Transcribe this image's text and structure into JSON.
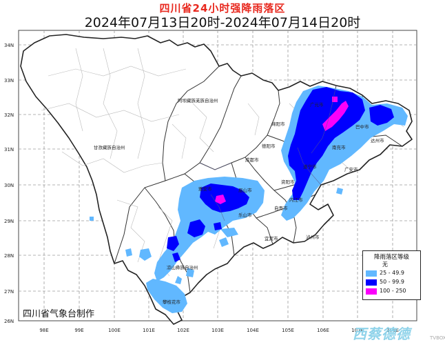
{
  "header": {
    "title": "四川省24小时强降雨落区",
    "period": "2024年07月13日20时-2024年07月14日20时"
  },
  "axes": {
    "lat_labels": [
      "34N",
      "33N",
      "32N",
      "31N",
      "30N",
      "29N",
      "28N",
      "27N",
      "26N"
    ],
    "lon_labels": [
      "98E",
      "99E",
      "100E",
      "101E",
      "102E",
      "103E",
      "104E",
      "105E",
      "106E",
      "107E",
      "108E"
    ]
  },
  "places": {
    "aba": "阿坝藏族羌族自治州",
    "ganzi": "甘孜藏族自治州",
    "chengdu": "成都市",
    "deyang": "德阳市",
    "mianyang": "绵阳市",
    "guangyuan": "广元市",
    "bazhong": "巴中市",
    "dazhou": "达州市",
    "nanchong": "南充市",
    "suining": "遂宁市",
    "guangan": "广安市",
    "ziyang": "资阳市",
    "meishan": "眉山市",
    "yaan": "雅安市",
    "leshan": "乐山市",
    "neijiang": "内江市",
    "zigong": "自贡市",
    "yibin": "宜宾市",
    "luzhou": "泸州市",
    "liangshan": "凉山彝族自治州",
    "panzhihua": "攀枝花市"
  },
  "legend": {
    "title": "降雨落区等级",
    "items": [
      {
        "label": "无",
        "color": "#ffffff"
      },
      {
        "label": "25 - 49.9",
        "color": "#61b8ff"
      },
      {
        "label": "50 - 99.9",
        "color": "#0000fe"
      },
      {
        "label": "100 - 250",
        "color": "#fa00fa"
      }
    ]
  },
  "footer": {
    "agency": "四川省气象台制作",
    "watermark": "西蔡德德",
    "watermark_small": "TVBOX"
  }
}
